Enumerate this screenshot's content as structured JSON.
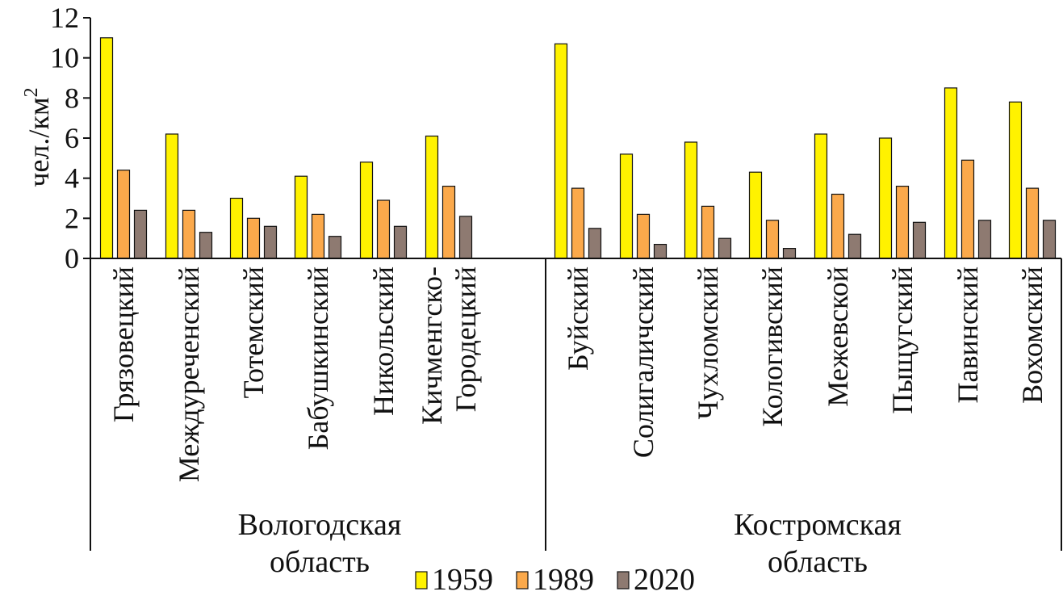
{
  "chart_data": {
    "type": "bar",
    "ylabel": "чел./км",
    "ylabel_superscript": "2",
    "ylim": [
      0,
      12
    ],
    "yticks": [
      "0",
      "2",
      "4",
      "6",
      "8",
      "10",
      "12"
    ],
    "grid": false,
    "legend_position": "bottom-center",
    "groups": [
      {
        "label_lines": [
          "Вологодская",
          "область"
        ],
        "categories": [
          [
            "Грязовецкий"
          ],
          [
            "Междуреченский"
          ],
          [
            "Тотемский"
          ],
          [
            "Бабушкинский"
          ],
          [
            "Никольский"
          ],
          [
            "Кичменгско-",
            "Городецкий"
          ]
        ]
      },
      {
        "label_lines": [
          "Костромская",
          "область"
        ],
        "categories": [
          [
            "Буйский"
          ],
          [
            "Солигаличский"
          ],
          [
            "Чухломский"
          ],
          [
            "Кологивский"
          ],
          [
            "Межевской"
          ],
          [
            "Пыщугский"
          ],
          [
            "Павинский"
          ],
          [
            "Вохомский"
          ]
        ]
      }
    ],
    "series": [
      {
        "name": "1959",
        "color": "#FFF200",
        "values": [
          11.0,
          6.2,
          3.0,
          4.1,
          4.8,
          6.1,
          10.7,
          5.2,
          5.8,
          4.3,
          6.2,
          6.0,
          8.5,
          7.8
        ]
      },
      {
        "name": "1989",
        "color": "#FBA94B",
        "values": [
          4.4,
          2.4,
          2.0,
          2.2,
          2.9,
          3.6,
          3.5,
          2.2,
          2.6,
          1.9,
          3.2,
          3.6,
          4.9,
          3.5
        ]
      },
      {
        "name": "2020",
        "color": "#8E7A71",
        "values": [
          2.4,
          1.3,
          1.6,
          1.1,
          1.6,
          2.1,
          1.5,
          0.7,
          1.0,
          0.5,
          1.2,
          1.8,
          1.9,
          1.9
        ]
      }
    ]
  }
}
